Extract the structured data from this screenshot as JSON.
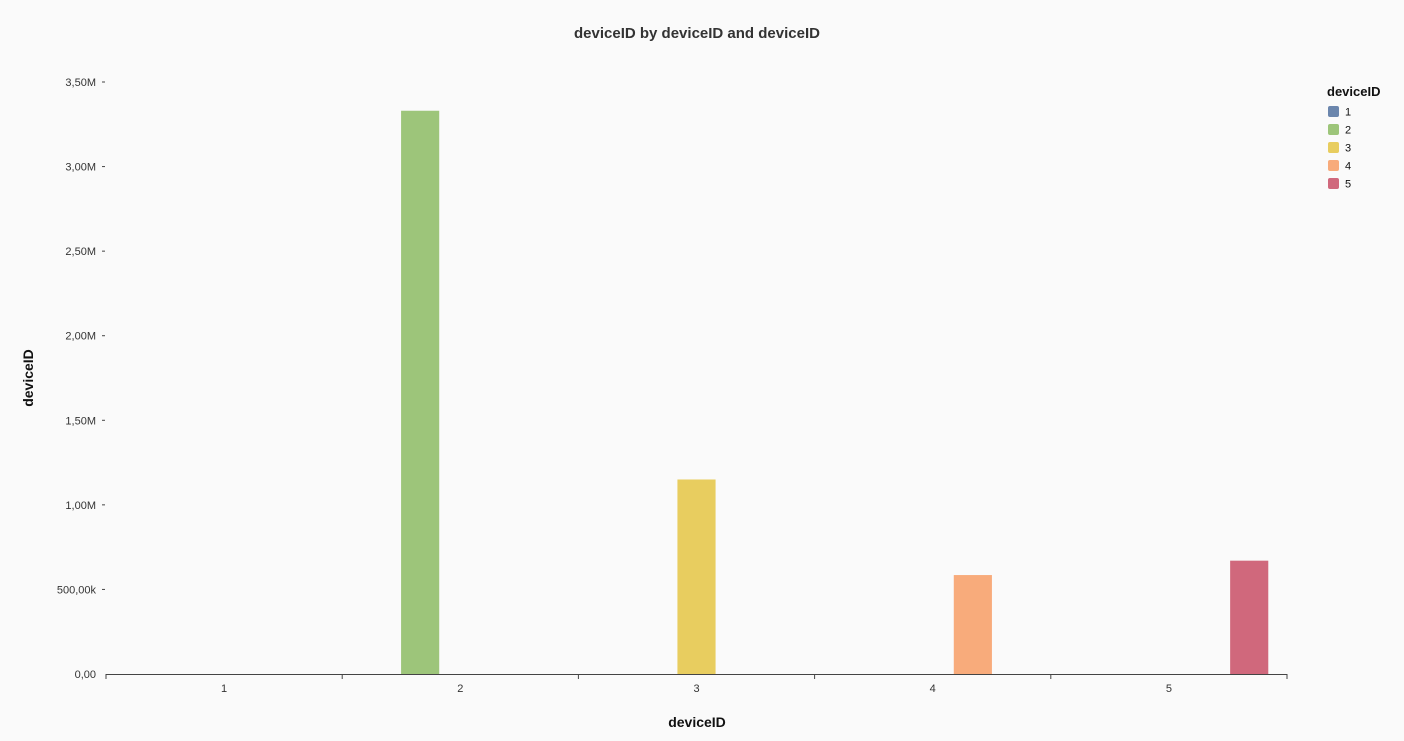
{
  "chart_data": {
    "type": "bar",
    "title": "deviceID by deviceID and deviceID",
    "xlabel": "deviceID",
    "ylabel": "deviceID",
    "categories": [
      "1",
      "2",
      "3",
      "4",
      "5"
    ],
    "series": [
      {
        "name": "1",
        "color": "#6b86ad",
        "values": [
          0,
          0,
          0,
          0,
          0
        ]
      },
      {
        "name": "2",
        "color": "#9dc57a",
        "values": [
          0,
          3330000,
          0,
          0,
          0
        ]
      },
      {
        "name": "3",
        "color": "#e8cd5f",
        "values": [
          0,
          0,
          1150000,
          0,
          0
        ]
      },
      {
        "name": "4",
        "color": "#f8ab7b",
        "values": [
          0,
          0,
          0,
          585000,
          0
        ]
      },
      {
        "name": "5",
        "color": "#d0687c",
        "values": [
          0,
          0,
          0,
          0,
          670000
        ]
      }
    ],
    "ylim": [
      0,
      3500000
    ],
    "yticks": [
      0,
      500000,
      1000000,
      1500000,
      2000000,
      2500000,
      3000000,
      3500000
    ],
    "ytick_labels": [
      "0,00",
      "500,00k",
      "1,00M",
      "1,50M",
      "2,00M",
      "2,50M",
      "3,00M",
      "3,50M"
    ],
    "legend": {
      "title": "deviceID",
      "position": "top-right"
    },
    "grid": false
  }
}
